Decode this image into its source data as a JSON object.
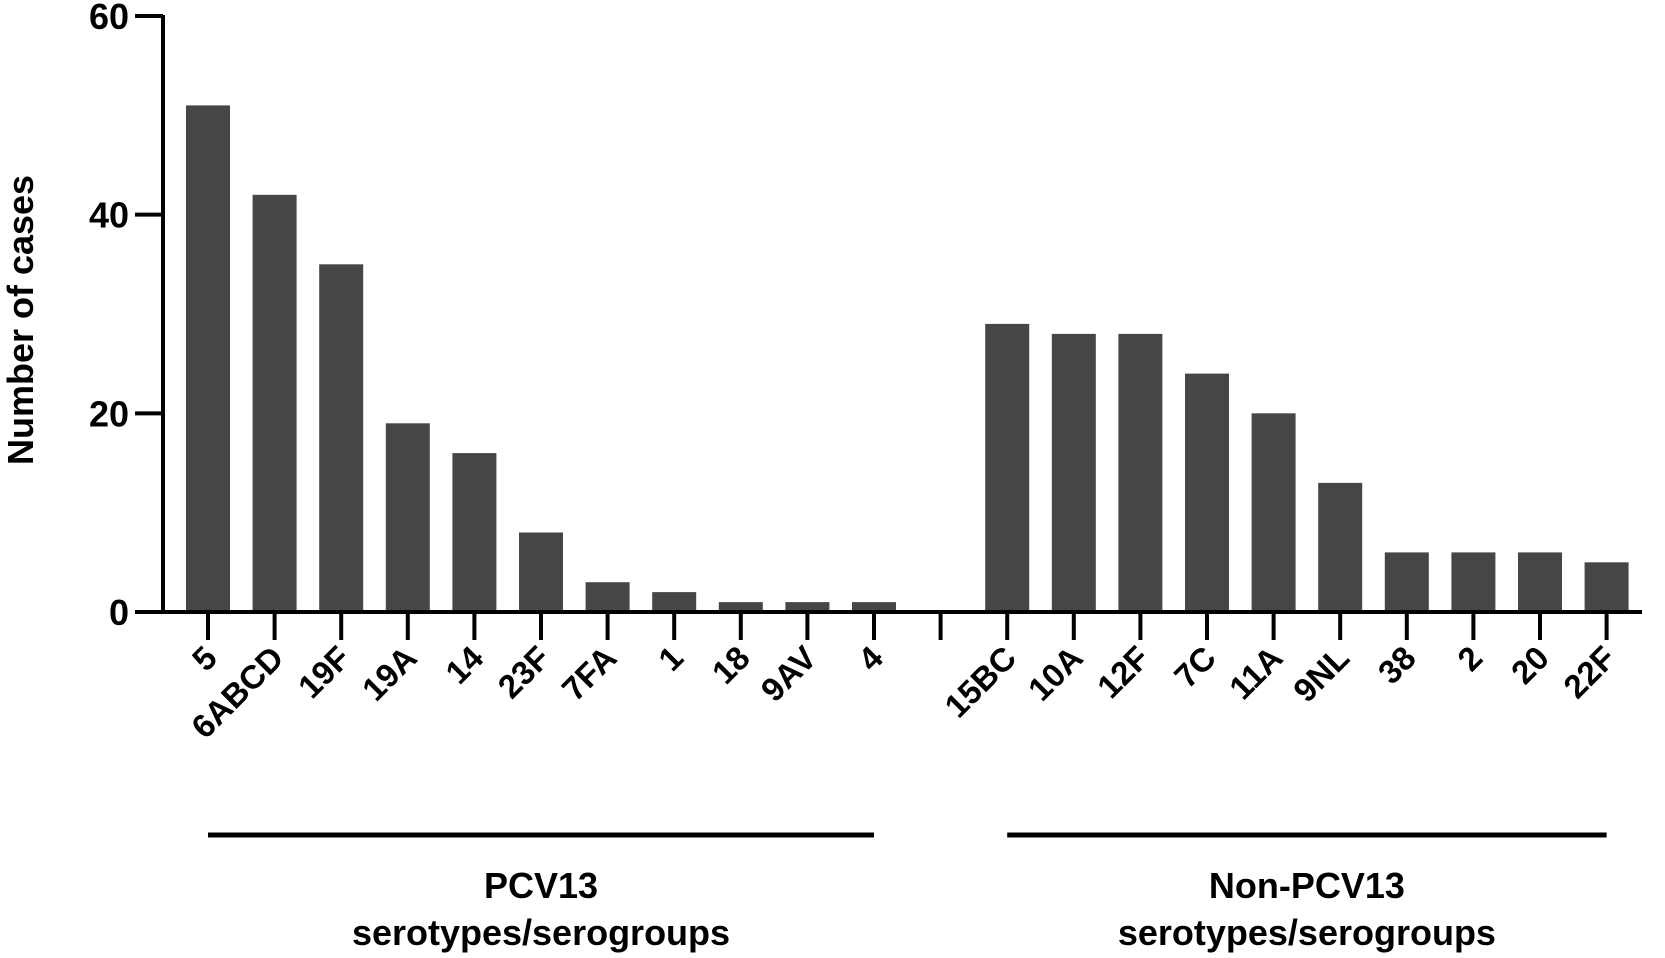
{
  "chart_data": {
    "type": "bar",
    "title": "",
    "xlabel": "",
    "ylabel": "Number of cases",
    "ylim": [
      0,
      60
    ],
    "yticks": [
      0,
      20,
      40,
      60
    ],
    "grid": false,
    "bar_color": "#464646",
    "axis_color": "#000000",
    "categories": [
      "5",
      "6ABCD",
      "19F",
      "19A",
      "14",
      "23F",
      "7FA",
      "1",
      "18",
      "9AV",
      "4",
      "",
      "15BC",
      "10A",
      "12F",
      "7C",
      "11A",
      "9NL",
      "38",
      "2",
      "20",
      "22F"
    ],
    "values": [
      51,
      42,
      35,
      19,
      16,
      8,
      3,
      2,
      1,
      1,
      1,
      null,
      29,
      28,
      28,
      24,
      20,
      13,
      6,
      6,
      6,
      5
    ],
    "groups": [
      {
        "label_line1": "PCV13",
        "label_line2": "serotypes/serogroups",
        "from_index": 0,
        "to_index": 10
      },
      {
        "label_line1": "Non-PCV13",
        "label_line2": "serotypes/serogroups",
        "from_index": 12,
        "to_index": 21
      }
    ]
  }
}
